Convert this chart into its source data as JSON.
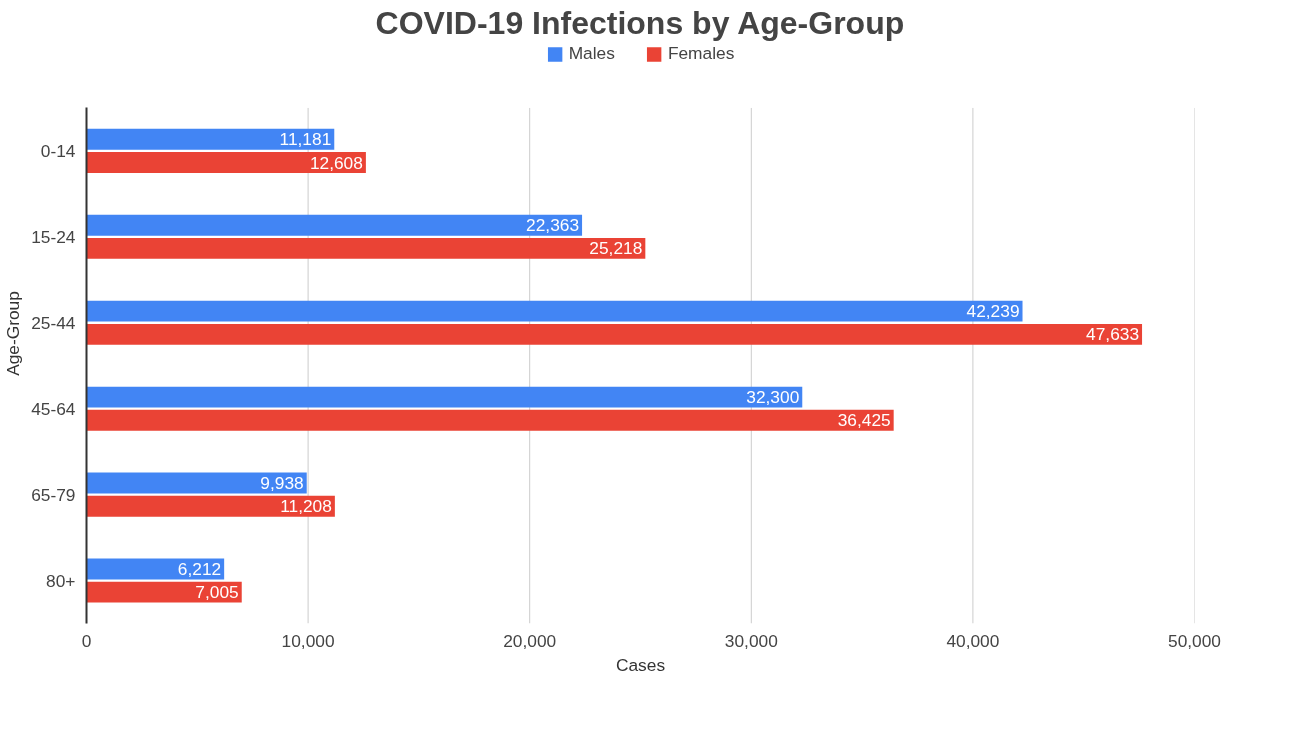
{
  "chart_data": {
    "type": "bar",
    "orientation": "horizontal",
    "title": "COVID-19 Infections by Age-Group",
    "xlabel": "Cases",
    "ylabel": "Age-Group",
    "categories": [
      "0-14",
      "15-24",
      "25-44",
      "45-64",
      "65-79",
      "80+"
    ],
    "series": [
      {
        "name": "Males",
        "color": "#4285f4",
        "values": [
          11181,
          22363,
          42239,
          32300,
          9938,
          6212
        ],
        "value_labels": [
          "11,181",
          "22,363",
          "42,239",
          "32,300",
          "9,938",
          "6,212"
        ]
      },
      {
        "name": "Females",
        "color": "#ea4335",
        "values": [
          12608,
          25218,
          47633,
          36425,
          11208,
          7005
        ],
        "value_labels": [
          "12,608",
          "25,218",
          "47,633",
          "36,425",
          "11,208",
          "7,005"
        ]
      }
    ],
    "xlim": [
      0,
      50000
    ],
    "xticks": [
      0,
      {
        "value": 10000,
        "label": "10,000"
      },
      {
        "value": 20000,
        "label": "20,000"
      },
      {
        "value": 30000,
        "label": "30,000"
      },
      {
        "value": 40000,
        "label": "40,000"
      },
      {
        "value": 50000,
        "label": "50,000"
      }
    ],
    "grid": "x",
    "legend": "top"
  }
}
